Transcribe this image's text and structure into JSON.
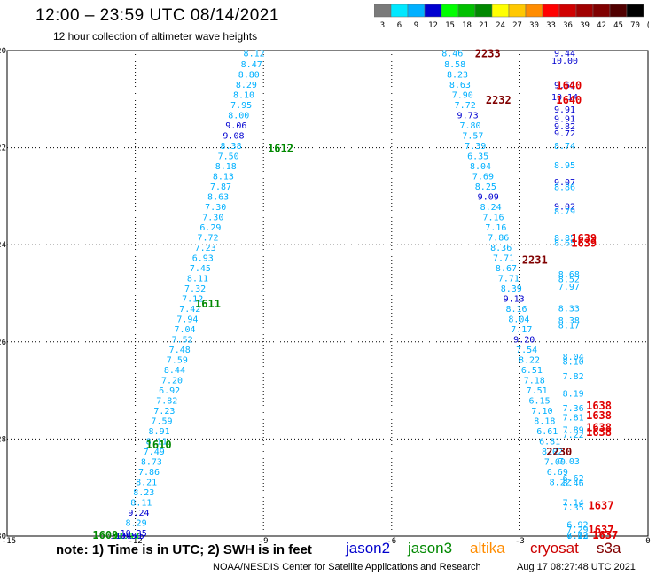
{
  "header": {
    "title": "12:00 – 23:59 UTC 08/14/2021",
    "subtitle": "12 hour collection of altimeter wave heights"
  },
  "colorbar": {
    "labels": [
      "3",
      "6",
      "9",
      "12",
      "15",
      "18",
      "21",
      "24",
      "27",
      "30",
      "33",
      "36",
      "39",
      "42",
      "45",
      "70",
      "(ft)"
    ],
    "colors": [
      "#7a7a7a",
      "#00e8ff",
      "#00b0ff",
      "#0000d0",
      "#00ff00",
      "#00c000",
      "#008800",
      "#ffff00",
      "#ffc800",
      "#ff8c00",
      "#ff0000",
      "#d00000",
      "#a00000",
      "#800000",
      "#500000",
      "#000000"
    ]
  },
  "footer": {
    "note": "note: 1) Time is in UTC; 2) SWH is in feet",
    "satellites": [
      {
        "name": "jason2",
        "color": "#0000cc"
      },
      {
        "name": "jason3",
        "color": "#008800"
      },
      {
        "name": "altika",
        "color": "#ff8c00"
      },
      {
        "name": "cryosat",
        "color": "#cc0000"
      },
      {
        "name": "s3a",
        "color": "#800000"
      }
    ],
    "credit": "NOAA/NESDIS Center for Satellite Applications and Research",
    "timestamp": "Aug 17 08:27:48 UTC 2021"
  },
  "chart_data": {
    "type": "scatter",
    "xlim": [
      -15,
      0
    ],
    "ylim": [
      -30,
      -20
    ],
    "xticks": [
      "-15",
      "-12",
      "-9",
      "-6",
      "-3",
      "0"
    ],
    "yticks": [
      "-20",
      "-22",
      "-24",
      "-26",
      "-28",
      "-30"
    ],
    "grid": true,
    "points": [
      {
        "x": -9.22,
        "y": -20.05,
        "v": "8.12",
        "c": "#00b0ff"
      },
      {
        "x": -9.28,
        "y": -20.27,
        "v": "8.47",
        "c": "#00b0ff"
      },
      {
        "x": -9.34,
        "y": -20.48,
        "v": "8.80",
        "c": "#00b0ff"
      },
      {
        "x": -9.4,
        "y": -20.69,
        "v": "8.29",
        "c": "#00b0ff"
      },
      {
        "x": -9.46,
        "y": -20.9,
        "v": "8.10",
        "c": "#00b0ff"
      },
      {
        "x": -9.52,
        "y": -21.11,
        "v": "7.95",
        "c": "#00b0ff"
      },
      {
        "x": -9.58,
        "y": -21.32,
        "v": "8.00",
        "c": "#00b0ff"
      },
      {
        "x": -9.64,
        "y": -21.53,
        "v": "9.06",
        "c": "#0000d0"
      },
      {
        "x": -9.7,
        "y": -21.74,
        "v": "9.08",
        "c": "#0000d0"
      },
      {
        "x": -9.76,
        "y": -21.95,
        "v": "8.38",
        "c": "#00b0ff"
      },
      {
        "x": -9.82,
        "y": -22.16,
        "v": "7.50",
        "c": "#00b0ff"
      },
      {
        "x": -9.88,
        "y": -22.37,
        "v": "8.18",
        "c": "#00b0ff"
      },
      {
        "x": -9.94,
        "y": -22.58,
        "v": "8.13",
        "c": "#00b0ff"
      },
      {
        "x": -10.0,
        "y": -22.79,
        "v": "7.87",
        "c": "#00b0ff"
      },
      {
        "x": -10.06,
        "y": -23.0,
        "v": "8.63",
        "c": "#00b0ff"
      },
      {
        "x": -10.12,
        "y": -23.21,
        "v": "7.30",
        "c": "#00b0ff"
      },
      {
        "x": -10.18,
        "y": -23.42,
        "v": "7.30",
        "c": "#00b0ff"
      },
      {
        "x": -10.24,
        "y": -23.63,
        "v": "6.29",
        "c": "#00b0ff"
      },
      {
        "x": -10.3,
        "y": -23.84,
        "v": "7.72",
        "c": "#00b0ff"
      },
      {
        "x": -10.36,
        "y": -24.05,
        "v": "7.23",
        "c": "#00b0ff"
      },
      {
        "x": -10.42,
        "y": -24.26,
        "v": "6.93",
        "c": "#00b0ff"
      },
      {
        "x": -10.48,
        "y": -24.47,
        "v": "7.45",
        "c": "#00b0ff"
      },
      {
        "x": -10.54,
        "y": -24.68,
        "v": "8.11",
        "c": "#00b0ff"
      },
      {
        "x": -10.6,
        "y": -24.89,
        "v": "7.32",
        "c": "#00b0ff"
      },
      {
        "x": -10.66,
        "y": -25.1,
        "v": "7.12",
        "c": "#00b0ff"
      },
      {
        "x": -10.72,
        "y": -25.31,
        "v": "7.42",
        "c": "#00b0ff"
      },
      {
        "x": -10.78,
        "y": -25.52,
        "v": "7.94",
        "c": "#00b0ff"
      },
      {
        "x": -10.84,
        "y": -25.73,
        "v": "7.04",
        "c": "#00b0ff"
      },
      {
        "x": -10.9,
        "y": -25.94,
        "v": "7.52",
        "c": "#00b0ff"
      },
      {
        "x": -10.96,
        "y": -26.15,
        "v": "7.48",
        "c": "#00b0ff"
      },
      {
        "x": -11.02,
        "y": -26.36,
        "v": "7.59",
        "c": "#00b0ff"
      },
      {
        "x": -11.08,
        "y": -26.57,
        "v": "8.44",
        "c": "#00b0ff"
      },
      {
        "x": -11.14,
        "y": -26.78,
        "v": "7.20",
        "c": "#00b0ff"
      },
      {
        "x": -11.2,
        "y": -26.99,
        "v": "6.92",
        "c": "#00b0ff"
      },
      {
        "x": -11.26,
        "y": -27.2,
        "v": "7.82",
        "c": "#00b0ff"
      },
      {
        "x": -11.32,
        "y": -27.41,
        "v": "7.23",
        "c": "#00b0ff"
      },
      {
        "x": -11.38,
        "y": -27.62,
        "v": "7.59",
        "c": "#00b0ff"
      },
      {
        "x": -11.44,
        "y": -27.83,
        "v": "8.91",
        "c": "#00b0ff"
      },
      {
        "x": -11.5,
        "y": -28.04,
        "v": "8.11",
        "c": "#00b0ff"
      },
      {
        "x": -11.56,
        "y": -28.25,
        "v": "7.49",
        "c": "#00b0ff"
      },
      {
        "x": -11.62,
        "y": -28.46,
        "v": "8.73",
        "c": "#00b0ff"
      },
      {
        "x": -11.68,
        "y": -28.67,
        "v": "7.86",
        "c": "#00b0ff"
      },
      {
        "x": -11.74,
        "y": -28.88,
        "v": "8.21",
        "c": "#00b0ff"
      },
      {
        "x": -11.8,
        "y": -29.09,
        "v": "8.23",
        "c": "#00b0ff"
      },
      {
        "x": -11.86,
        "y": -29.3,
        "v": "8.11",
        "c": "#00b0ff"
      },
      {
        "x": -11.92,
        "y": -29.51,
        "v": "9.24",
        "c": "#0000d0"
      },
      {
        "x": -11.98,
        "y": -29.72,
        "v": "8.29",
        "c": "#00b0ff"
      },
      {
        "x": -12.04,
        "y": -29.93,
        "v": "10.25",
        "c": "#0000d0"
      },
      {
        "x": -12.1,
        "y": -30.14,
        "v": "10.75",
        "c": "#0000d0"
      },
      {
        "x": -12.16,
        "y": -30.35,
        "v": "10.69",
        "c": "#0000d0"
      },
      {
        "x": -12.22,
        "y": -30.56,
        "v": "12.43",
        "c": "#00ff00"
      },
      {
        "x": -12.28,
        "y": -30.77,
        "v": "11.49",
        "c": "#0000d0"
      },
      {
        "x": -4.58,
        "y": -20.05,
        "v": "8.46",
        "c": "#00b0ff"
      },
      {
        "x": -4.52,
        "y": -20.27,
        "v": "8.58",
        "c": "#00b0ff"
      },
      {
        "x": -4.46,
        "y": -20.48,
        "v": "8.23",
        "c": "#00b0ff"
      },
      {
        "x": -4.4,
        "y": -20.69,
        "v": "8.63",
        "c": "#00b0ff"
      },
      {
        "x": -4.34,
        "y": -20.9,
        "v": "7.90",
        "c": "#00b0ff"
      },
      {
        "x": -4.28,
        "y": -21.11,
        "v": "7.72",
        "c": "#00b0ff"
      },
      {
        "x": -4.22,
        "y": -21.32,
        "v": "9.73",
        "c": "#0000d0"
      },
      {
        "x": -4.16,
        "y": -21.53,
        "v": "7.80",
        "c": "#00b0ff"
      },
      {
        "x": -4.1,
        "y": -21.74,
        "v": "7.57",
        "c": "#00b0ff"
      },
      {
        "x": -4.04,
        "y": -21.95,
        "v": "7.39",
        "c": "#00b0ff"
      },
      {
        "x": -3.98,
        "y": -22.16,
        "v": "6.35",
        "c": "#00b0ff"
      },
      {
        "x": -3.92,
        "y": -22.37,
        "v": "8.04",
        "c": "#00b0ff"
      },
      {
        "x": -3.86,
        "y": -22.58,
        "v": "7.69",
        "c": "#00b0ff"
      },
      {
        "x": -3.8,
        "y": -22.79,
        "v": "8.25",
        "c": "#00b0ff"
      },
      {
        "x": -3.74,
        "y": -23.0,
        "v": "9.09",
        "c": "#0000d0"
      },
      {
        "x": -3.68,
        "y": -23.21,
        "v": "8.24",
        "c": "#00b0ff"
      },
      {
        "x": -3.62,
        "y": -23.42,
        "v": "7.16",
        "c": "#00b0ff"
      },
      {
        "x": -3.56,
        "y": -23.63,
        "v": "7.16",
        "c": "#00b0ff"
      },
      {
        "x": -3.5,
        "y": -23.84,
        "v": "7.86",
        "c": "#00b0ff"
      },
      {
        "x": -3.44,
        "y": -24.05,
        "v": "8.36",
        "c": "#00b0ff"
      },
      {
        "x": -3.38,
        "y": -24.26,
        "v": "7.71",
        "c": "#00b0ff"
      },
      {
        "x": -3.32,
        "y": -24.47,
        "v": "8.67",
        "c": "#00b0ff"
      },
      {
        "x": -3.26,
        "y": -24.68,
        "v": "7.71",
        "c": "#00b0ff"
      },
      {
        "x": -3.2,
        "y": -24.89,
        "v": "8.39",
        "c": "#00b0ff"
      },
      {
        "x": -3.14,
        "y": -25.1,
        "v": "9.13",
        "c": "#0000d0"
      },
      {
        "x": -3.08,
        "y": -25.31,
        "v": "8.16",
        "c": "#00b0ff"
      },
      {
        "x": -3.02,
        "y": -25.52,
        "v": "8.04",
        "c": "#00b0ff"
      },
      {
        "x": -2.96,
        "y": -25.73,
        "v": "7.17",
        "c": "#00b0ff"
      },
      {
        "x": -2.9,
        "y": -25.94,
        "v": "9.20",
        "c": "#0000d0"
      },
      {
        "x": -2.84,
        "y": -26.15,
        "v": "7.54",
        "c": "#00b0ff"
      },
      {
        "x": -2.78,
        "y": -26.36,
        "v": "8.22",
        "c": "#00b0ff"
      },
      {
        "x": -2.72,
        "y": -26.57,
        "v": "6.51",
        "c": "#00b0ff"
      },
      {
        "x": -2.66,
        "y": -26.78,
        "v": "7.18",
        "c": "#00b0ff"
      },
      {
        "x": -2.6,
        "y": -26.99,
        "v": "7.51",
        "c": "#00b0ff"
      },
      {
        "x": -2.54,
        "y": -27.2,
        "v": "6.15",
        "c": "#00b0ff"
      },
      {
        "x": -2.48,
        "y": -27.41,
        "v": "7.10",
        "c": "#00b0ff"
      },
      {
        "x": -2.42,
        "y": -27.62,
        "v": "8.18",
        "c": "#00b0ff"
      },
      {
        "x": -2.36,
        "y": -27.83,
        "v": "6.61",
        "c": "#00b0ff"
      },
      {
        "x": -2.3,
        "y": -28.04,
        "v": "6.81",
        "c": "#00b0ff"
      },
      {
        "x": -2.24,
        "y": -28.25,
        "v": "8.02",
        "c": "#00b0ff"
      },
      {
        "x": -2.18,
        "y": -28.46,
        "v": "7.00",
        "c": "#00b0ff"
      },
      {
        "x": -2.12,
        "y": -28.67,
        "v": "6.69",
        "c": "#00b0ff"
      },
      {
        "x": -2.06,
        "y": -28.88,
        "v": "8.22",
        "c": "#00b0ff"
      },
      {
        "x": -1.95,
        "y": -20.05,
        "v": "9.44",
        "c": "#0000d0"
      },
      {
        "x": -1.95,
        "y": -20.2,
        "v": "10.00",
        "c": "#0000d0"
      },
      {
        "x": -1.95,
        "y": -20.7,
        "v": "9.51",
        "c": "#0000d0"
      },
      {
        "x": -1.95,
        "y": -20.95,
        "v": "10.14",
        "c": "#0000d0"
      },
      {
        "x": -1.95,
        "y": -21.2,
        "v": "9.91",
        "c": "#0000d0"
      },
      {
        "x": -1.95,
        "y": -21.4,
        "v": "9.91",
        "c": "#0000d0"
      },
      {
        "x": -1.95,
        "y": -21.55,
        "v": "9.82",
        "c": "#0000d0"
      },
      {
        "x": -1.95,
        "y": -21.7,
        "v": "9.72",
        "c": "#0000d0"
      },
      {
        "x": -1.95,
        "y": -21.95,
        "v": "8.74",
        "c": "#00b0ff"
      },
      {
        "x": -1.95,
        "y": -22.35,
        "v": "8.95",
        "c": "#00b0ff"
      },
      {
        "x": -1.95,
        "y": -22.7,
        "v": "9.07",
        "c": "#0000d0"
      },
      {
        "x": -1.95,
        "y": -22.8,
        "v": "8.86",
        "c": "#00b0ff"
      },
      {
        "x": -1.95,
        "y": -23.2,
        "v": "9.02",
        "c": "#0000d0"
      },
      {
        "x": -1.95,
        "y": -23.3,
        "v": "8.79",
        "c": "#00b0ff"
      },
      {
        "x": -1.95,
        "y": -23.85,
        "v": "8.85",
        "c": "#00b0ff"
      },
      {
        "x": -1.95,
        "y": -23.95,
        "v": "8.65",
        "c": "#00b0ff"
      },
      {
        "x": -1.85,
        "y": -24.6,
        "v": "8.68",
        "c": "#00b0ff"
      },
      {
        "x": -1.85,
        "y": -24.7,
        "v": "8.52",
        "c": "#00b0ff"
      },
      {
        "x": -1.85,
        "y": -24.85,
        "v": "7.97",
        "c": "#00b0ff"
      },
      {
        "x": -1.85,
        "y": -25.3,
        "v": "8.33",
        "c": "#00b0ff"
      },
      {
        "x": -1.85,
        "y": -25.55,
        "v": "8.38",
        "c": "#00b0ff"
      },
      {
        "x": -1.85,
        "y": -25.65,
        "v": "8.17",
        "c": "#00b0ff"
      },
      {
        "x": -1.75,
        "y": -26.3,
        "v": "8.04",
        "c": "#00b0ff"
      },
      {
        "x": -1.75,
        "y": -26.4,
        "v": "8.10",
        "c": "#00b0ff"
      },
      {
        "x": -1.75,
        "y": -26.7,
        "v": "7.82",
        "c": "#00b0ff"
      },
      {
        "x": -1.75,
        "y": -27.05,
        "v": "8.19",
        "c": "#00b0ff"
      },
      {
        "x": -1.75,
        "y": -27.35,
        "v": "7.36",
        "c": "#00b0ff"
      },
      {
        "x": -1.75,
        "y": -27.55,
        "v": "7.81",
        "c": "#00b0ff"
      },
      {
        "x": -1.75,
        "y": -27.8,
        "v": "7.89",
        "c": "#00b0ff"
      },
      {
        "x": -1.75,
        "y": -27.9,
        "v": "7.22",
        "c": "#00b0ff"
      },
      {
        "x": -1.85,
        "y": -28.45,
        "v": "7.03",
        "c": "#00b0ff"
      },
      {
        "x": -1.75,
        "y": -28.8,
        "v": "6.62",
        "c": "#00b0ff"
      },
      {
        "x": -1.75,
        "y": -28.9,
        "v": "8.46",
        "c": "#00b0ff"
      },
      {
        "x": -1.75,
        "y": -29.3,
        "v": "7.14",
        "c": "#00b0ff"
      },
      {
        "x": -1.75,
        "y": -29.4,
        "v": "7.35",
        "c": "#00b0ff"
      },
      {
        "x": -1.65,
        "y": -29.75,
        "v": "6.92",
        "c": "#00b0ff"
      },
      {
        "x": -1.65,
        "y": -29.85,
        "v": "7.29",
        "c": "#00b0ff"
      },
      {
        "x": -1.65,
        "y": -30.3,
        "v": "6.22",
        "c": "#00b0ff"
      },
      {
        "x": -1.65,
        "y": -30.4,
        "v": "7.12",
        "c": "#00b0ff"
      },
      {
        "x": -1.65,
        "y": -30.5,
        "v": "7.03",
        "c": "#00b0ff"
      }
    ],
    "time_labels": [
      {
        "x": -8.6,
        "y": -22.0,
        "v": "1612",
        "c": "#008800"
      },
      {
        "x": -10.3,
        "y": -25.2,
        "v": "1611",
        "c": "#008800"
      },
      {
        "x": -11.45,
        "y": -28.1,
        "v": "1610",
        "c": "#008800"
      },
      {
        "x": -12.7,
        "y": -30.95,
        "v": "1609",
        "c": "#008800"
      },
      {
        "x": -3.75,
        "y": -20.05,
        "v": "2233",
        "c": "#800000"
      },
      {
        "x": -3.5,
        "y": -21.0,
        "v": "2232",
        "c": "#800000"
      },
      {
        "x": -2.65,
        "y": -24.3,
        "v": "2231",
        "c": "#800000"
      },
      {
        "x": -2.08,
        "y": -28.25,
        "v": "2230",
        "c": "#800000"
      },
      {
        "x": -1.85,
        "y": -20.7,
        "v": "1640",
        "c": "#e00000"
      },
      {
        "x": -1.85,
        "y": -21.0,
        "v": "1640",
        "c": "#e00000"
      },
      {
        "x": -1.5,
        "y": -23.85,
        "v": "1639",
        "c": "#e00000"
      },
      {
        "x": -1.5,
        "y": -23.95,
        "v": "1639",
        "c": "#e00000"
      },
      {
        "x": -1.15,
        "y": -27.3,
        "v": "1638",
        "c": "#e00000"
      },
      {
        "x": -1.15,
        "y": -27.5,
        "v": "1638",
        "c": "#e00000"
      },
      {
        "x": -1.15,
        "y": -27.75,
        "v": "1638",
        "c": "#e00000"
      },
      {
        "x": -1.15,
        "y": -27.85,
        "v": "1638",
        "c": "#e00000"
      },
      {
        "x": -1.1,
        "y": -29.35,
        "v": "1637",
        "c": "#e00000"
      },
      {
        "x": -1.1,
        "y": -29.85,
        "v": "1637",
        "c": "#e00000"
      },
      {
        "x": -1.0,
        "y": -30.35,
        "v": "1637",
        "c": "#e00000"
      },
      {
        "x": -1.0,
        "y": -30.45,
        "v": "1637",
        "c": "#e00000"
      }
    ]
  }
}
